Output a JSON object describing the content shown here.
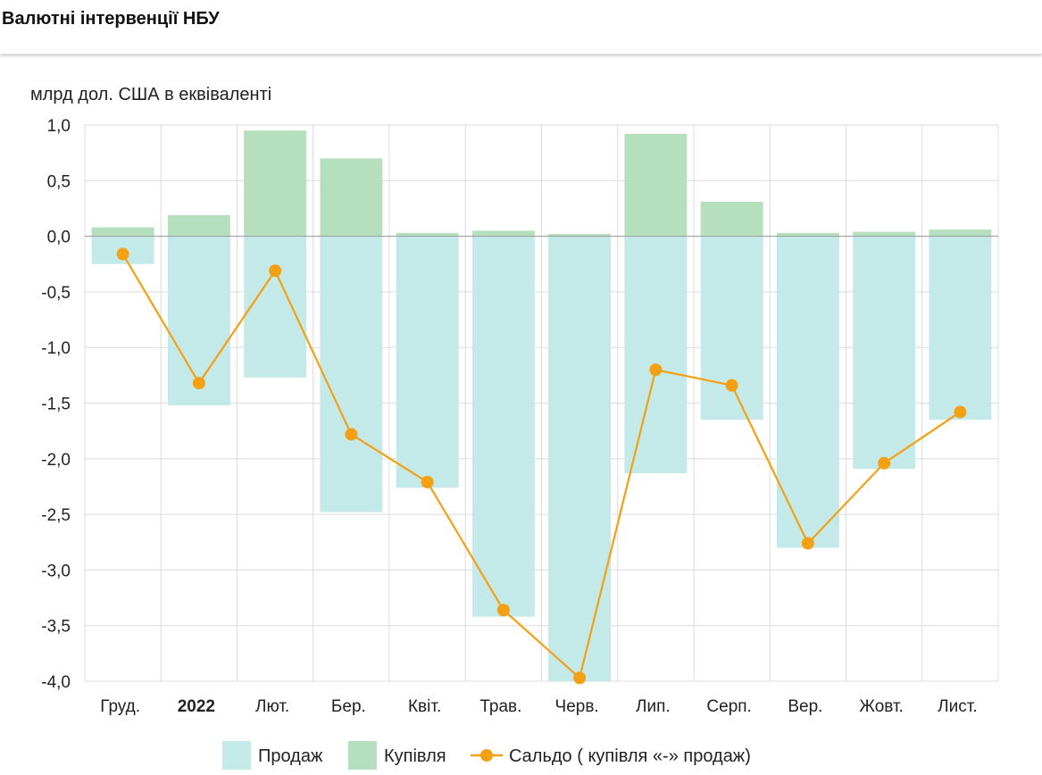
{
  "header": {
    "title": "Валютні інтервенції НБУ"
  },
  "chart_data": {
    "type": "bar",
    "ylabel": "млрд дол. США в еквіваленті",
    "categories": [
      "Груд.",
      "2022",
      "Лют.",
      "Бер.",
      "Квіт.",
      "Трав.",
      "Черв.",
      "Лип.",
      "Серп.",
      "Вер.",
      "Жовт.",
      "Лист."
    ],
    "bold_categories": [
      "2022"
    ],
    "ylim": [
      -4.0,
      1.0
    ],
    "yticks": [
      "1,0",
      "0,5",
      "0,0",
      "-0,5",
      "-1,0",
      "-1,5",
      "-2,0",
      "-2,5",
      "-3,0",
      "-3,5",
      "-4,0"
    ],
    "ytick_values": [
      1.0,
      0.5,
      0.0,
      -0.5,
      -1.0,
      -1.5,
      -2.0,
      -2.5,
      -3.0,
      -3.5,
      -4.0
    ],
    "grid": true,
    "legend_position": "bottom",
    "series": [
      {
        "name": "Продаж",
        "type": "bar",
        "color": "#c3e9e9",
        "values": [
          -0.25,
          -1.52,
          -1.27,
          -2.48,
          -2.26,
          -3.42,
          -4.0,
          -2.13,
          -1.65,
          -2.8,
          -2.09,
          -1.65
        ]
      },
      {
        "name": "Купівля",
        "type": "bar",
        "color": "#b6e0bd",
        "values": [
          0.08,
          0.19,
          0.95,
          0.7,
          0.03,
          0.05,
          0.02,
          0.92,
          0.31,
          0.03,
          0.04,
          0.06
        ]
      },
      {
        "name": "Сальдо ( купівля «-» продаж)",
        "type": "line",
        "color": "#f5a012",
        "values": [
          -0.16,
          -1.32,
          -0.31,
          -1.78,
          -2.21,
          -3.36,
          -3.97,
          -1.2,
          -1.34,
          -2.76,
          -2.04,
          -1.58
        ]
      }
    ]
  }
}
